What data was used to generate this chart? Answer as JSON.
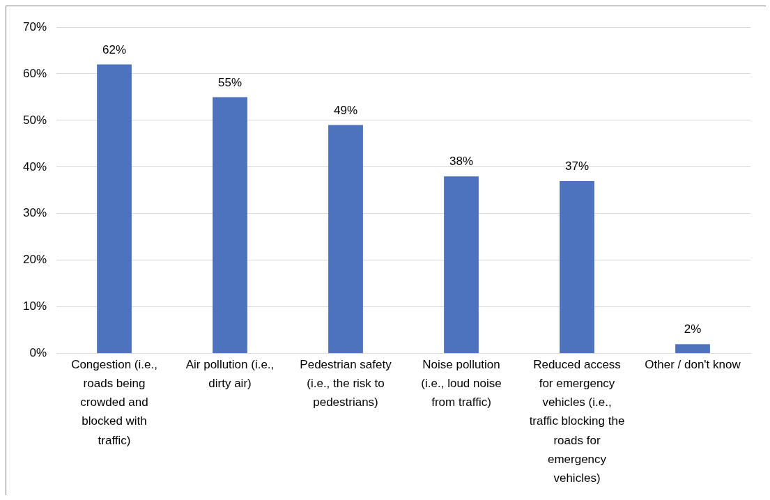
{
  "chart_data": {
    "type": "bar",
    "categories": [
      "Congestion (i.e., roads being crowded and blocked with traffic)",
      "Air pollution (i.e., dirty air)",
      "Pedestrian safety (i.e., the risk to pedestrians)",
      "Noise pollution (i.e., loud noise from traffic)",
      "Reduced access for emergency vehicles (i.e., traffic blocking the roads for emergency vehicles)",
      "Other / don't know"
    ],
    "values": [
      62,
      55,
      49,
      38,
      37,
      2
    ],
    "value_labels": [
      "62%",
      "55%",
      "49%",
      "38%",
      "37%",
      "2%"
    ],
    "color": "#4e73be",
    "ylim": [
      0,
      70
    ],
    "yticks": [
      {
        "value": 0,
        "label": "0%"
      },
      {
        "value": 10,
        "label": "10%"
      },
      {
        "value": 20,
        "label": "20%"
      },
      {
        "value": 30,
        "label": "30%"
      },
      {
        "value": 40,
        "label": "40%"
      },
      {
        "value": 50,
        "label": "50%"
      },
      {
        "value": 60,
        "label": "60%"
      },
      {
        "value": 70,
        "label": "70%"
      }
    ],
    "grid": "y",
    "legend": false
  }
}
